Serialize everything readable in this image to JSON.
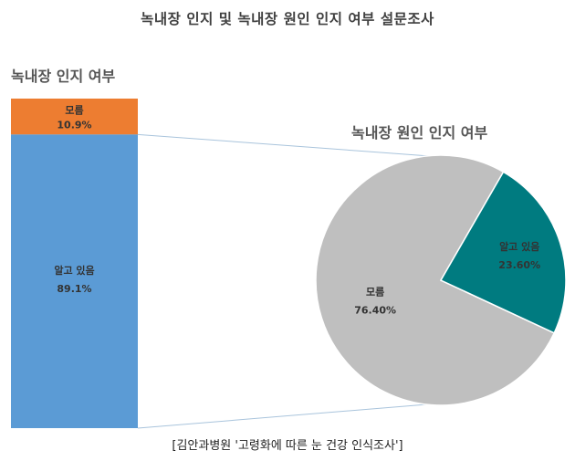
{
  "title": "녹내장 인지 및 녹내장 원인 인지 여부 설문조사",
  "source": "[김안과병원 '고령화에 따른 눈 건강 인식조사']",
  "colors": {
    "orange": "#ED7D31",
    "blue": "#5B9BD5",
    "gray": "#BFBFBF",
    "teal": "#007B80",
    "connector": "#A9C4DC"
  },
  "chart_data": [
    {
      "type": "bar",
      "title": "녹내장 인지 여부",
      "stacked": true,
      "categories": [
        "알고 있음",
        "모름"
      ],
      "values": [
        89.1,
        10.9
      ],
      "labels": [
        "89.1%",
        "10.9%"
      ],
      "colors": [
        "#5B9BD5",
        "#ED7D31"
      ]
    },
    {
      "type": "pie",
      "title": "녹내장 원인 인지 여부",
      "categories": [
        "알고 있음",
        "모름"
      ],
      "values": [
        23.6,
        76.4
      ],
      "labels": [
        "23.60%",
        "76.40%"
      ],
      "colors": [
        "#007B80",
        "#BFBFBF"
      ]
    }
  ]
}
